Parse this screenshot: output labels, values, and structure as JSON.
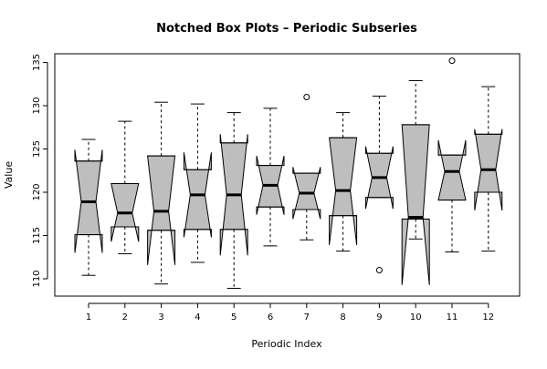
{
  "chart_data": {
    "type": "boxplot",
    "title": "Notched Box Plots – Periodic Subseries",
    "xlabel": "Periodic Index",
    "ylabel": "Value",
    "categories": [
      "1",
      "2",
      "3",
      "4",
      "5",
      "6",
      "7",
      "8",
      "9",
      "10",
      "11",
      "12"
    ],
    "ylim": [
      108,
      136
    ],
    "yticks": [
      110,
      115,
      120,
      125,
      130,
      135
    ],
    "box_fill": "#bebebe",
    "grid": false,
    "legend": "none",
    "boxes": [
      {
        "category": "1",
        "whisker_low": 110.4,
        "q1": 115.1,
        "median": 118.9,
        "q3": 123.6,
        "whisker_high": 126.1,
        "notch_low": 113.0,
        "notch_high": 124.9,
        "outliers": []
      },
      {
        "category": "2",
        "whisker_low": 112.9,
        "q1": 116.0,
        "median": 117.6,
        "q3": 121.0,
        "whisker_high": 128.2,
        "notch_low": 114.3,
        "notch_high": 121.0,
        "outliers": []
      },
      {
        "category": "3",
        "whisker_low": 109.4,
        "q1": 115.6,
        "median": 117.8,
        "q3": 124.2,
        "whisker_high": 130.4,
        "notch_low": 111.6,
        "notch_high": 124.2,
        "outliers": []
      },
      {
        "category": "4",
        "whisker_low": 111.9,
        "q1": 115.7,
        "median": 119.7,
        "q3": 122.6,
        "whisker_high": 130.2,
        "notch_low": 114.8,
        "notch_high": 124.6,
        "outliers": []
      },
      {
        "category": "5",
        "whisker_low": 108.9,
        "q1": 115.7,
        "median": 119.7,
        "q3": 125.7,
        "whisker_high": 129.2,
        "notch_low": 112.7,
        "notch_high": 126.7,
        "outliers": []
      },
      {
        "category": "6",
        "whisker_low": 113.8,
        "q1": 118.3,
        "median": 120.8,
        "q3": 123.1,
        "whisker_high": 129.7,
        "notch_low": 117.4,
        "notch_high": 124.2,
        "outliers": []
      },
      {
        "category": "7",
        "whisker_low": 114.5,
        "q1": 118.0,
        "median": 119.9,
        "q3": 122.2,
        "whisker_high": 122.2,
        "notch_low": 116.9,
        "notch_high": 122.9,
        "outliers": [
          131.0
        ]
      },
      {
        "category": "8",
        "whisker_low": 113.2,
        "q1": 117.3,
        "median": 120.2,
        "q3": 126.3,
        "whisker_high": 129.2,
        "notch_low": 113.9,
        "notch_high": 126.3,
        "outliers": []
      },
      {
        "category": "9",
        "whisker_low": 119.4,
        "q1": 119.4,
        "median": 121.7,
        "q3": 124.5,
        "whisker_high": 131.1,
        "notch_low": 118.1,
        "notch_high": 125.3,
        "outliers": [
          111.0
        ]
      },
      {
        "category": "10",
        "whisker_low": 114.6,
        "q1": 116.9,
        "median": 117.1,
        "q3": 127.8,
        "whisker_high": 132.9,
        "notch_low": 109.3,
        "notch_high": 127.8,
        "outliers": []
      },
      {
        "category": "11",
        "whisker_low": 113.1,
        "q1": 119.1,
        "median": 122.4,
        "q3": 124.3,
        "whisker_high": 124.3,
        "notch_low": 119.1,
        "notch_high": 126.0,
        "outliers": [
          135.2
        ]
      },
      {
        "category": "12",
        "whisker_low": 113.2,
        "q1": 120.0,
        "median": 122.6,
        "q3": 126.7,
        "whisker_high": 132.2,
        "notch_low": 117.9,
        "notch_high": 127.3,
        "outliers": []
      }
    ]
  }
}
